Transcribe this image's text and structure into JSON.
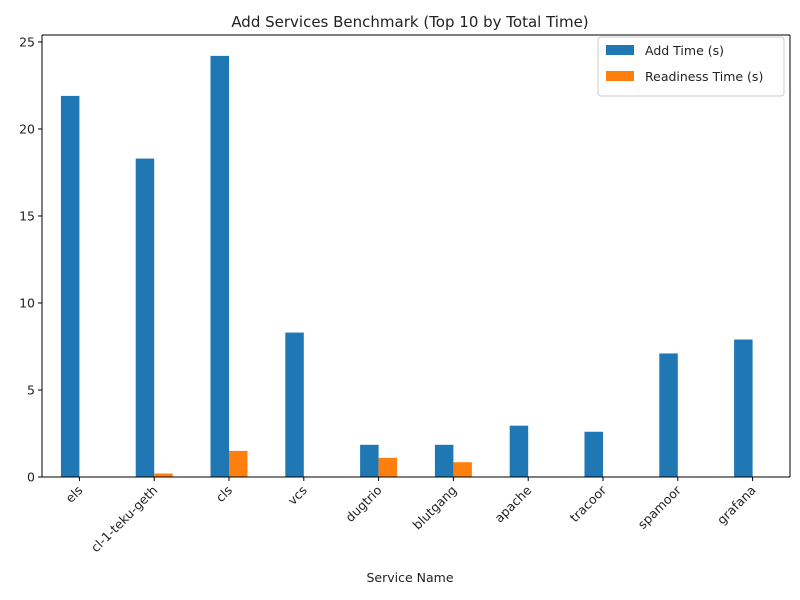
{
  "chart_data": {
    "type": "bar",
    "title": "Add Services Benchmark (Top 10 by Total Time)",
    "xlabel": "Service Name",
    "ylabel": "",
    "categories": [
      "els",
      "cl-1-teku-geth",
      "cls",
      "vcs",
      "dugtrio",
      "blutgang",
      "apache",
      "tracoor",
      "spamoor",
      "grafana"
    ],
    "series": [
      {
        "name": "Add Time (s)",
        "color": "#1f77b4",
        "values": [
          21.9,
          18.3,
          24.2,
          8.3,
          1.85,
          1.85,
          2.95,
          2.6,
          7.1,
          7.9
        ]
      },
      {
        "name": "Readiness Time (s)",
        "color": "#ff7f0e",
        "values": [
          0,
          0.2,
          1.5,
          0,
          1.1,
          0.85,
          0,
          0,
          0,
          0
        ]
      }
    ],
    "ylim": [
      0,
      25.4
    ],
    "yticks": [
      0,
      5,
      10,
      15,
      20,
      25
    ],
    "grid": false,
    "legend_position": "top-right"
  }
}
